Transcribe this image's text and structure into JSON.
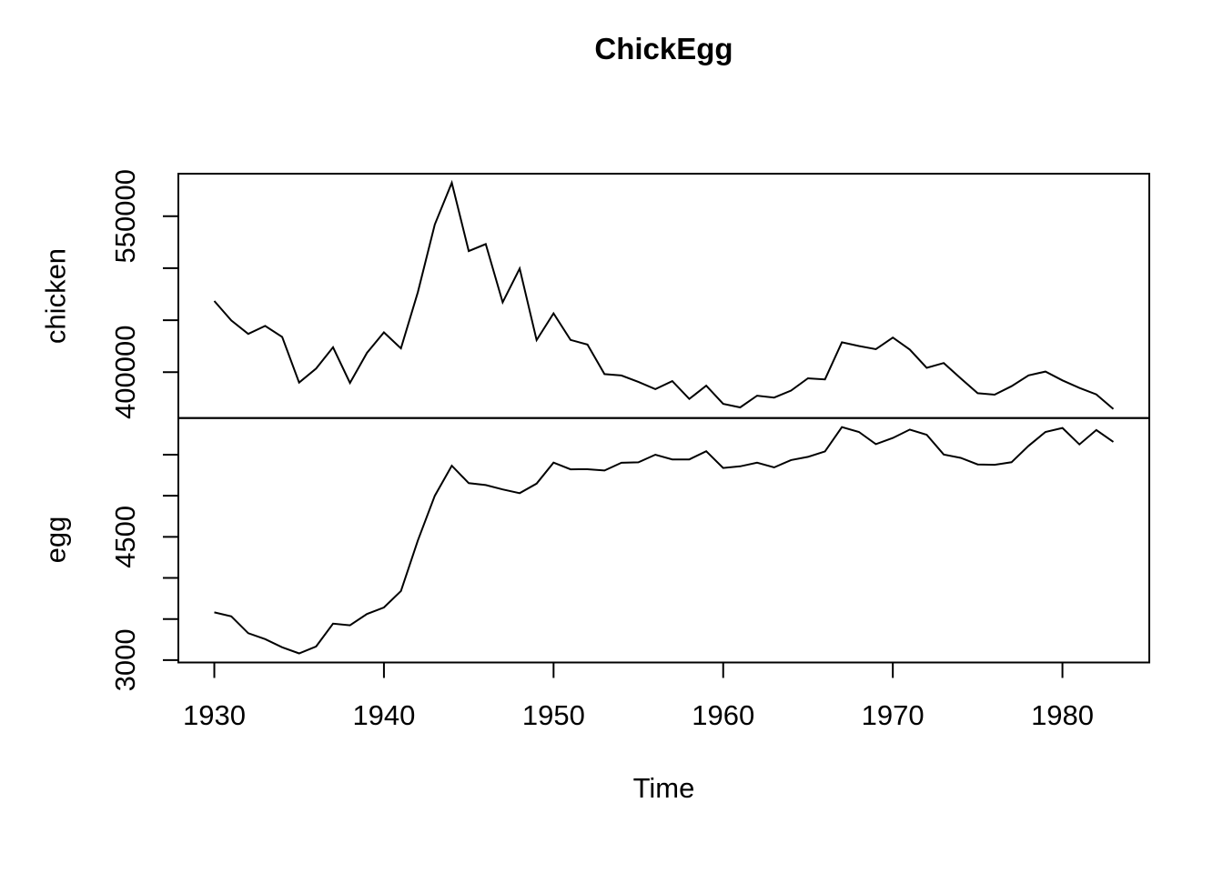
{
  "title": "ChickEgg",
  "xlabel": "Time",
  "chart_data": {
    "type": "line",
    "title": "ChickEgg",
    "xlabel": "Time",
    "x_start": 1930,
    "x_end": 1983,
    "xlim": [
      1927.88,
      1985.12
    ],
    "xtick_values": [
      1930,
      1940,
      1950,
      1960,
      1970,
      1980
    ],
    "xtick_labels": [
      "1930",
      "1940",
      "1950",
      "1960",
      "1970",
      "1980"
    ],
    "line_color": "#000000",
    "background": "#ffffff",
    "layout": "two stacked panels sharing the x axis, box around each panel, grid off, no legend",
    "series": [
      {
        "name": "chicken",
        "ylim": [
          355879,
          590902
        ],
        "yticks": [
          400000,
          450000,
          500000,
          550000
        ],
        "ytick_labels": [
          "400000",
          "",
          "",
          "550000"
        ],
        "values": [
          468491,
          449743,
          436815,
          444523,
          433937,
          389958,
          403446,
          423921,
          389624,
          418591,
          438288,
          422841,
          476935,
          542047,
          582197,
          516497,
          523227,
          467217,
          499644,
          430876,
          456549,
          430988,
          426555,
          398156,
          396776,
          390708,
          383690,
          391363,
          374281,
          387002,
          369484,
          366082,
          377392,
          375575,
          382262,
          394118,
          393019,
          428746,
          425158,
          422096,
          433280,
          421763,
          404191,
          408769,
          394101,
          379754,
          378361,
          386518,
          396933,
          400585,
          392110,
          384838,
          378609,
          364584
        ]
      },
      {
        "name": "egg",
        "ylim": [
          2970.8,
          5946.2
        ],
        "yticks": [
          3000,
          3500,
          4000,
          4500,
          5000,
          5500
        ],
        "ytick_labels": [
          "3000",
          "",
          "",
          "4500",
          "",
          ""
        ],
        "values": [
          3581,
          3532,
          3327,
          3255,
          3156,
          3081,
          3166,
          3443,
          3424,
          3561,
          3640,
          3840,
          4456,
          5000,
          5366,
          5154,
          5130,
          5077,
          5032,
          5148,
          5404,
          5322,
          5323,
          5307,
          5402,
          5407,
          5500,
          5442,
          5442,
          5542,
          5339,
          5358,
          5403,
          5345,
          5435,
          5474,
          5540,
          5836,
          5777,
          5629,
          5704,
          5806,
          5742,
          5502,
          5461,
          5382,
          5377,
          5408,
          5608,
          5777,
          5825,
          5625,
          5800,
          5656
        ]
      }
    ]
  }
}
